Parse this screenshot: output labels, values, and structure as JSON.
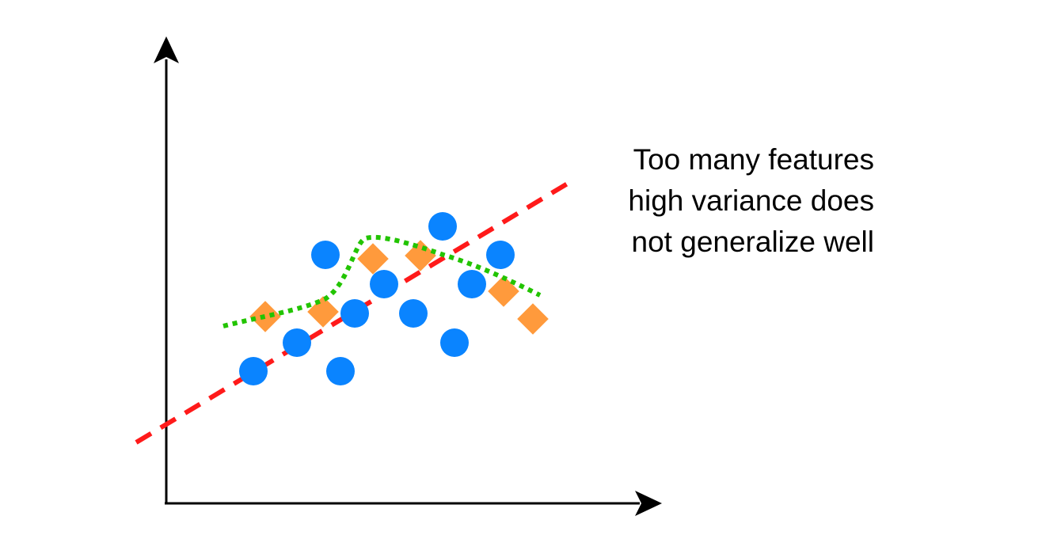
{
  "caption": {
    "lines": [
      "Too many features",
      "high variance does",
      "not generalize well"
    ]
  },
  "colors": {
    "axis": "#000000",
    "circle_points": "#0a84ff",
    "diamond_points": "#ff9a3c",
    "linear_fit": "#ff1a1a",
    "overfit_curve": "#22c400"
  },
  "markers": {
    "circle-icon": "blue data point",
    "diamond-icon": "orange data point"
  }
}
